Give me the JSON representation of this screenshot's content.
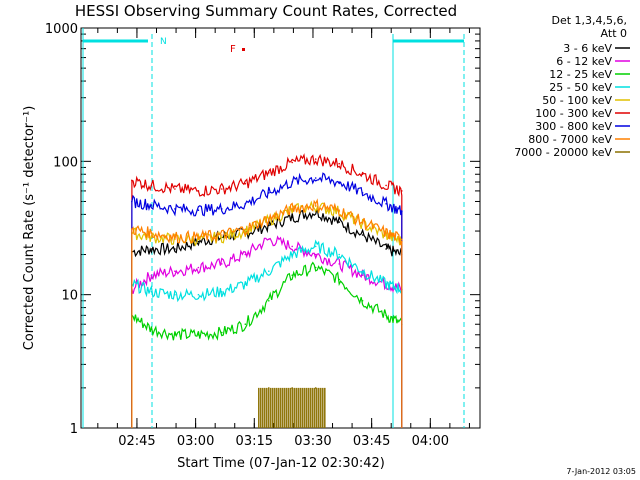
{
  "chart_data": {
    "type": "line",
    "title": "HESSI Observing Summary Count Rates, Corrected",
    "xlabel": "Start Time (07-Jan-12 02:30:42)",
    "ylabel": "Corrected Count Rate (s⁻¹ detector⁻¹)",
    "yscale": "log",
    "ylim": [
      1,
      1000
    ],
    "x_unit": "minutes after 02:30:42",
    "xlim": [
      0,
      102
    ],
    "x_ticks": [
      {
        "label": "02:45",
        "x": 14.3
      },
      {
        "label": "03:00",
        "x": 29.3
      },
      {
        "label": "03:15",
        "x": 44.3
      },
      {
        "label": "03:30",
        "x": 59.3
      },
      {
        "label": "03:45",
        "x": 74.3
      },
      {
        "label": "04:00",
        "x": 89.3
      }
    ],
    "y_ticks": [
      {
        "label": "1",
        "y": 1
      },
      {
        "label": "10",
        "y": 10
      },
      {
        "label": "100",
        "y": 100
      },
      {
        "label": "1000",
        "y": 1000
      }
    ],
    "legend": {
      "header": [
        "Det 1,3,4,5,6,",
        "Att 0"
      ],
      "placement": "right"
    },
    "markers": {
      "night_label": "N",
      "flare_label": "F"
    },
    "footer_date": "7-Jan-2012 03:05",
    "x": [
      13,
      18,
      24,
      30,
      36,
      42,
      48,
      54,
      60,
      66,
      72,
      78,
      82
    ],
    "series": [
      {
        "name": "3 - 6 keV",
        "color": "#000000",
        "values": [
          21,
          22,
          22,
          25,
          27,
          29,
          33,
          38,
          42,
          35,
          28,
          22,
          20
        ]
      },
      {
        "name": "6 - 12 keV",
        "color": "#e000e0",
        "values": [
          11,
          14,
          15,
          16,
          17,
          20,
          26,
          23,
          20,
          17,
          14,
          12,
          11
        ]
      },
      {
        "name": "12 - 25 keV",
        "color": "#00d000",
        "values": [
          7,
          5.5,
          5,
          5,
          5.2,
          6,
          9,
          14,
          16,
          13,
          9,
          7,
          6
        ]
      },
      {
        "name": "25 - 50 keV",
        "color": "#00e0e0",
        "values": [
          12,
          10.5,
          10,
          10,
          10.5,
          12,
          15,
          20,
          23,
          20,
          15,
          12,
          11
        ]
      },
      {
        "name": "50 - 100 keV",
        "color": "#e0c000",
        "values": [
          29,
          27,
          26,
          26,
          27,
          30,
          36,
          43,
          46,
          42,
          34,
          28,
          25
        ]
      },
      {
        "name": "100 - 300 keV",
        "color": "#e00000",
        "values": [
          72,
          66,
          62,
          60,
          62,
          68,
          82,
          98,
          104,
          96,
          80,
          66,
          60
        ]
      },
      {
        "name": "300 - 800 keV",
        "color": "#0000e0",
        "values": [
          50,
          47,
          44,
          43,
          44,
          48,
          58,
          70,
          75,
          70,
          58,
          48,
          42
        ]
      },
      {
        "name": "800 - 7000 keV",
        "color": "#ff8000",
        "values": [
          31,
          29,
          27,
          27,
          28,
          31,
          37,
          44,
          47,
          43,
          35,
          29,
          26
        ]
      },
      {
        "name": "7000 - 20000 keV",
        "color": "#8b7000",
        "values": [
          null,
          null,
          null,
          null,
          null,
          null,
          2.0,
          2.0,
          2.0,
          null,
          null,
          null,
          null
        ]
      }
    ]
  }
}
